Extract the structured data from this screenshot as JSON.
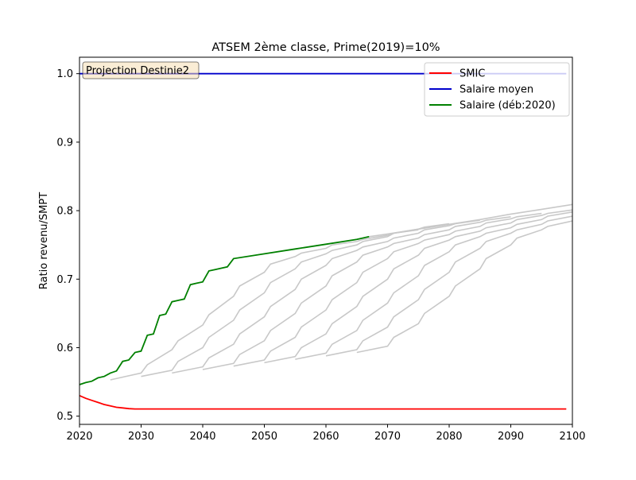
{
  "chart_data": {
    "type": "line",
    "title": "ATSEM 2ème classe, Prime(2019)=10%",
    "xlabel": "",
    "ylabel": "Ratio revenu/SMPT",
    "xlim": [
      2020,
      2100
    ],
    "ylim": [
      0.488,
      1.024
    ],
    "xticks": [
      2020,
      2030,
      2040,
      2050,
      2060,
      2070,
      2080,
      2090,
      2100
    ],
    "yticks": [
      0.5,
      0.6,
      0.7,
      0.8,
      0.9,
      1.0
    ],
    "grid": false,
    "legend_position": "top-right",
    "annotation": "Projection Destinie2",
    "colors": {
      "smic": "#ff0000",
      "salaire_moyen": "#0000cc",
      "salaire_2020": "#008000",
      "other_cohorts": "#c8c8c8"
    },
    "series": [
      {
        "name": "SMIC",
        "color": "#ff0000",
        "x": [
          2020,
          2021,
          2022,
          2023,
          2024,
          2025,
          2026,
          2027,
          2028,
          2029,
          2030,
          2040,
          2060,
          2080,
          2099
        ],
        "y": [
          0.53,
          0.526,
          0.523,
          0.52,
          0.517,
          0.515,
          0.513,
          0.512,
          0.511,
          0.5105,
          0.5105,
          0.5105,
          0.5105,
          0.5105,
          0.5105
        ]
      },
      {
        "name": "Salaire moyen",
        "color": "#0000cc",
        "x": [
          2020,
          2099
        ],
        "y": [
          1.0,
          1.0
        ]
      },
      {
        "name": "Salaire (déb:2020)",
        "color": "#008000",
        "x": [
          2020,
          2021,
          2022,
          2023,
          2024,
          2025,
          2026,
          2027,
          2028,
          2029,
          2030,
          2031,
          2032,
          2033,
          2034,
          2035,
          2036,
          2037,
          2038,
          2039,
          2040,
          2041,
          2042,
          2043,
          2044,
          2045,
          2050,
          2055,
          2060,
          2065,
          2067
        ],
        "y": [
          0.546,
          0.549,
          0.551,
          0.556,
          0.558,
          0.563,
          0.566,
          0.58,
          0.582,
          0.593,
          0.595,
          0.618,
          0.62,
          0.647,
          0.649,
          0.667,
          0.669,
          0.671,
          0.692,
          0.694,
          0.696,
          0.712,
          0.714,
          0.716,
          0.718,
          0.73,
          0.737,
          0.744,
          0.751,
          0.758,
          0.762
        ]
      }
    ],
    "other_cohorts": [
      {
        "x": [
          2025,
          2030,
          2031,
          2035,
          2036,
          2040,
          2041,
          2045,
          2046,
          2050,
          2051,
          2055,
          2056,
          2060,
          2061,
          2065,
          2066,
          2070,
          2071,
          2075
        ],
        "y": [
          0.553,
          0.563,
          0.575,
          0.597,
          0.61,
          0.633,
          0.648,
          0.675,
          0.69,
          0.71,
          0.722,
          0.733,
          0.738,
          0.745,
          0.75,
          0.755,
          0.758,
          0.764,
          0.767,
          0.772
        ]
      },
      {
        "x": [
          2030,
          2035,
          2036,
          2040,
          2041,
          2045,
          2046,
          2050,
          2051,
          2055,
          2056,
          2060,
          2061,
          2065,
          2066,
          2070,
          2071,
          2075,
          2076,
          2080
        ],
        "y": [
          0.558,
          0.567,
          0.58,
          0.6,
          0.615,
          0.64,
          0.655,
          0.68,
          0.695,
          0.715,
          0.725,
          0.737,
          0.742,
          0.75,
          0.755,
          0.762,
          0.767,
          0.773,
          0.776,
          0.781
        ]
      },
      {
        "x": [
          2035,
          2040,
          2041,
          2045,
          2046,
          2050,
          2051,
          2055,
          2056,
          2060,
          2061,
          2065,
          2066,
          2070,
          2071,
          2075,
          2076,
          2080,
          2081,
          2085
        ],
        "y": [
          0.563,
          0.572,
          0.585,
          0.605,
          0.62,
          0.645,
          0.66,
          0.685,
          0.7,
          0.72,
          0.73,
          0.742,
          0.747,
          0.755,
          0.76,
          0.767,
          0.772,
          0.778,
          0.781,
          0.786
        ]
      },
      {
        "x": [
          2040,
          2045,
          2046,
          2050,
          2051,
          2055,
          2056,
          2060,
          2061,
          2065,
          2066,
          2070,
          2071,
          2075,
          2076,
          2080,
          2081,
          2085,
          2086,
          2090
        ],
        "y": [
          0.568,
          0.577,
          0.59,
          0.61,
          0.625,
          0.65,
          0.665,
          0.69,
          0.705,
          0.725,
          0.735,
          0.747,
          0.752,
          0.76,
          0.765,
          0.772,
          0.777,
          0.783,
          0.786,
          0.791
        ]
      },
      {
        "x": [
          2045,
          2050,
          2051,
          2055,
          2056,
          2060,
          2061,
          2065,
          2066,
          2070,
          2071,
          2075,
          2076,
          2080,
          2081,
          2085,
          2086,
          2090,
          2091,
          2095
        ],
        "y": [
          0.573,
          0.582,
          0.595,
          0.615,
          0.63,
          0.655,
          0.67,
          0.695,
          0.71,
          0.73,
          0.74,
          0.752,
          0.757,
          0.765,
          0.77,
          0.777,
          0.782,
          0.788,
          0.791,
          0.796
        ]
      },
      {
        "x": [
          2050,
          2055,
          2056,
          2060,
          2061,
          2065,
          2066,
          2070,
          2071,
          2075,
          2076,
          2080,
          2081,
          2085,
          2086,
          2090,
          2091,
          2095,
          2096,
          2100
        ],
        "y": [
          0.578,
          0.587,
          0.6,
          0.62,
          0.635,
          0.66,
          0.675,
          0.7,
          0.715,
          0.735,
          0.745,
          0.757,
          0.762,
          0.77,
          0.775,
          0.782,
          0.787,
          0.793,
          0.796,
          0.801
        ]
      },
      {
        "x": [
          2055,
          2060,
          2061,
          2065,
          2066,
          2070,
          2071,
          2075,
          2076,
          2080,
          2081,
          2085,
          2086,
          2090,
          2091,
          2095,
          2096,
          2100
        ],
        "y": [
          0.583,
          0.592,
          0.605,
          0.625,
          0.64,
          0.665,
          0.68,
          0.705,
          0.72,
          0.74,
          0.75,
          0.762,
          0.767,
          0.775,
          0.78,
          0.787,
          0.792,
          0.798
        ]
      },
      {
        "x": [
          2060,
          2065,
          2066,
          2070,
          2071,
          2075,
          2076,
          2080,
          2081,
          2085,
          2086,
          2090,
          2091,
          2095,
          2096,
          2100
        ],
        "y": [
          0.588,
          0.597,
          0.61,
          0.63,
          0.645,
          0.67,
          0.685,
          0.71,
          0.725,
          0.745,
          0.755,
          0.767,
          0.772,
          0.78,
          0.785,
          0.792
        ]
      },
      {
        "x": [
          2065,
          2070,
          2071,
          2075,
          2076,
          2080,
          2081,
          2085,
          2086,
          2090,
          2091,
          2095,
          2096,
          2100
        ],
        "y": [
          0.593,
          0.602,
          0.615,
          0.635,
          0.65,
          0.675,
          0.69,
          0.715,
          0.73,
          0.75,
          0.76,
          0.772,
          0.777,
          0.785
        ]
      },
      {
        "x": [
          2067,
          2070,
          2075,
          2080,
          2085,
          2090,
          2095,
          2100
        ],
        "y": [
          0.762,
          0.766,
          0.773,
          0.78,
          0.787,
          0.795,
          0.802,
          0.809
        ]
      }
    ]
  }
}
